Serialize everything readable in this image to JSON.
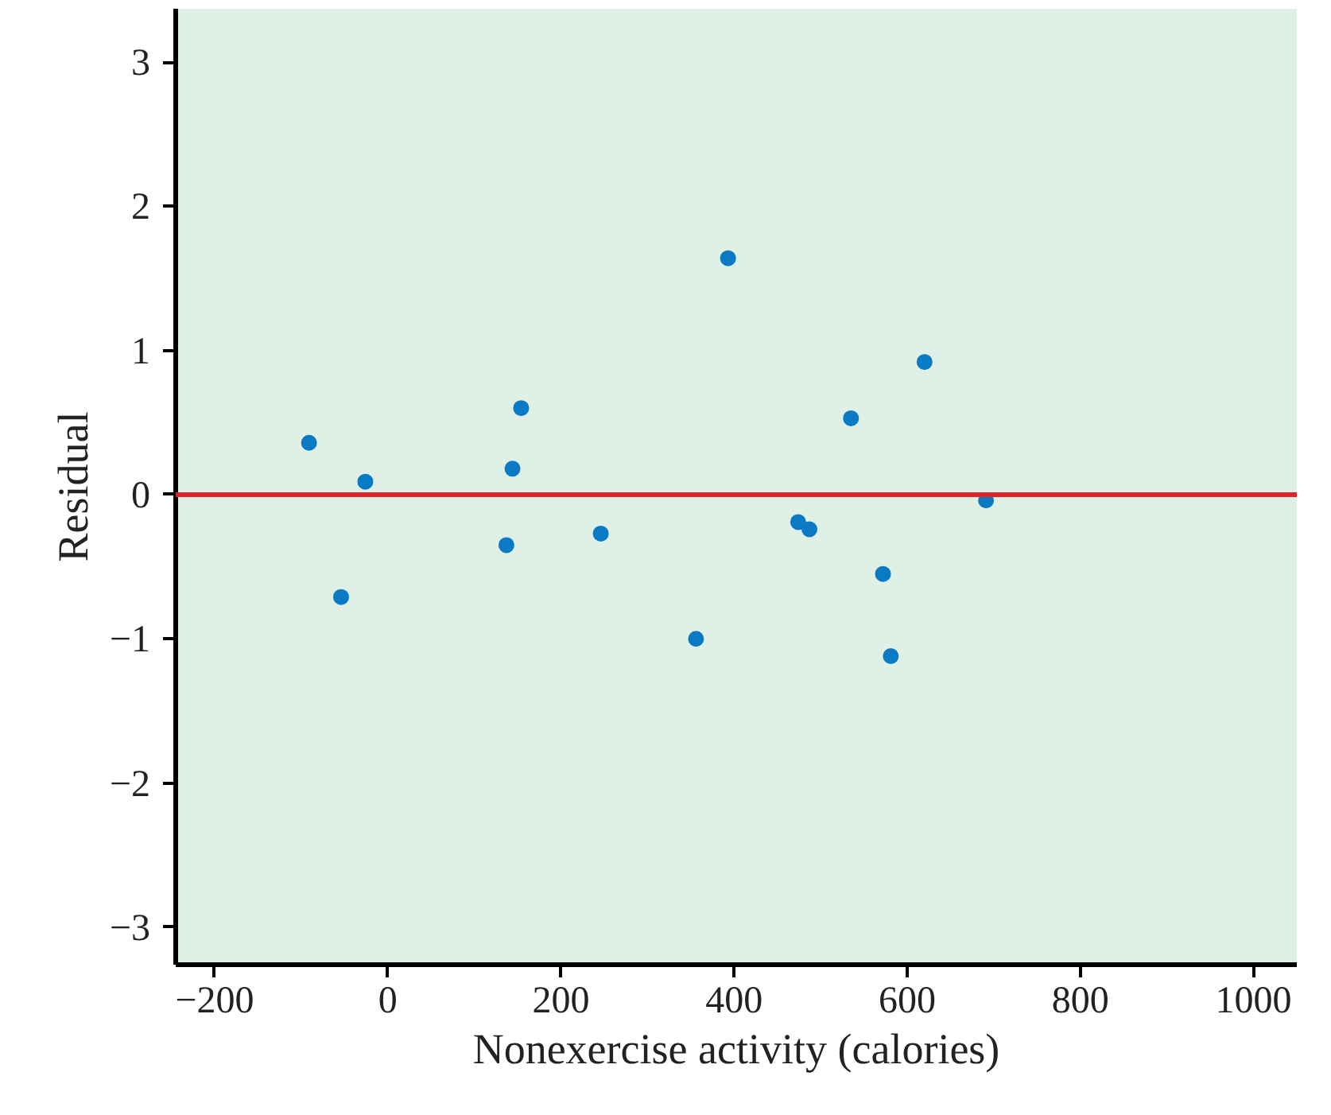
{
  "chart_data": {
    "type": "scatter",
    "xlabel": "Nonexercise activity (calories)",
    "ylabel": "Residual",
    "x": [
      -91,
      -26,
      -54,
      154,
      144,
      137,
      246,
      393,
      356,
      474,
      487,
      535,
      620,
      572,
      581,
      691
    ],
    "series": [
      {
        "color": "#0a7ac4",
        "values": [
          0.36,
          0.09,
          -0.71,
          0.6,
          0.18,
          -0.35,
          -0.27,
          1.64,
          -1.0,
          -0.19,
          -0.24,
          0.53,
          0.92,
          -0.55,
          -1.12,
          -0.04
        ]
      }
    ],
    "xlim": [
      -245,
      1050
    ],
    "ylim": [
      -3.26,
      3.37
    ],
    "xticks": [
      {
        "value": -200,
        "label": "−200"
      },
      0,
      200,
      400,
      600,
      800,
      1000
    ],
    "yticks": [
      {
        "value": -3,
        "label": "−3"
      },
      {
        "value": -2,
        "label": "−2"
      },
      {
        "value": -1,
        "label": "−1"
      },
      0,
      1,
      2,
      3
    ],
    "ref_lines": [
      {
        "axis": "y",
        "value": 0,
        "color": "#e0232b",
        "line_style": "solid"
      }
    ],
    "grid": false,
    "marker": "circle"
  }
}
